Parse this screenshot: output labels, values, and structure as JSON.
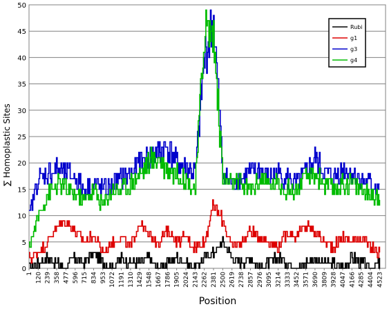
{
  "chart_data": {
    "type": "line",
    "title": "",
    "xlabel": "Position",
    "ylabel": "∑ Homoplastic Sites",
    "ylim": [
      0,
      50
    ],
    "yticks": [
      0,
      5,
      10,
      15,
      20,
      25,
      30,
      35,
      40,
      45,
      50
    ],
    "xlim": [
      1,
      4600
    ],
    "xtick_labels": [
      "1",
      "120",
      "239",
      "358",
      "477",
      "596",
      "715",
      "834",
      "953",
      "1072",
      "1191",
      "1310",
      "1429",
      "1548",
      "1667",
      "1786",
      "1905",
      "2024",
      "2143",
      "2262",
      "2381",
      "2500",
      "2619",
      "2738",
      "2857",
      "2976",
      "3095",
      "3214",
      "3333",
      "3452",
      "3571",
      "3690",
      "3809",
      "3928",
      "4047",
      "4166",
      "4285",
      "4404",
      "4523"
    ],
    "grid": "horizontal",
    "legend": {
      "position": "top-right"
    },
    "series": [
      {
        "name": "Rubi",
        "color": "#000000",
        "x_start": 1,
        "x_step": 119,
        "values": [
          0,
          1,
          2,
          1,
          0,
          2,
          1,
          3,
          1,
          0,
          2,
          1,
          1,
          2,
          0,
          1,
          2,
          1,
          0,
          2,
          3,
          5,
          2,
          1,
          2,
          0,
          1,
          2,
          1,
          0,
          1,
          2,
          1,
          1,
          0,
          2,
          1,
          0,
          1
        ]
      },
      {
        "name": "g1",
        "color": "#dd0000",
        "x_start": 1,
        "x_step": 119,
        "values": [
          2,
          3,
          5,
          8,
          9,
          7,
          5,
          6,
          3,
          5,
          6,
          4,
          9,
          6,
          5,
          7,
          5,
          6,
          4,
          5,
          12,
          9,
          4,
          5,
          7,
          6,
          5,
          4,
          7,
          6,
          8,
          7,
          5,
          4,
          6,
          5,
          6,
          4,
          3
        ]
      },
      {
        "name": "g3",
        "color": "#0000cc",
        "x_start": 1,
        "x_step": 119,
        "values": [
          10,
          17,
          18,
          19,
          18,
          17,
          15,
          16,
          15,
          16,
          17,
          18,
          20,
          21,
          22,
          23,
          20,
          19,
          18,
          40,
          47,
          18,
          16,
          17,
          18,
          19,
          17,
          18,
          17,
          16,
          18,
          21,
          18,
          17,
          19,
          18,
          17,
          16,
          15
        ]
      },
      {
        "name": "g4",
        "color": "#00bb00",
        "x_start": 1,
        "x_step": 119,
        "values": [
          4,
          10,
          14,
          16,
          15,
          14,
          13,
          15,
          12,
          15,
          15,
          16,
          18,
          20,
          21,
          19,
          18,
          17,
          15,
          46,
          44,
          17,
          16,
          16,
          15,
          17,
          16,
          16,
          15,
          15,
          17,
          18,
          16,
          15,
          16,
          16,
          15,
          14,
          13
        ]
      }
    ]
  }
}
